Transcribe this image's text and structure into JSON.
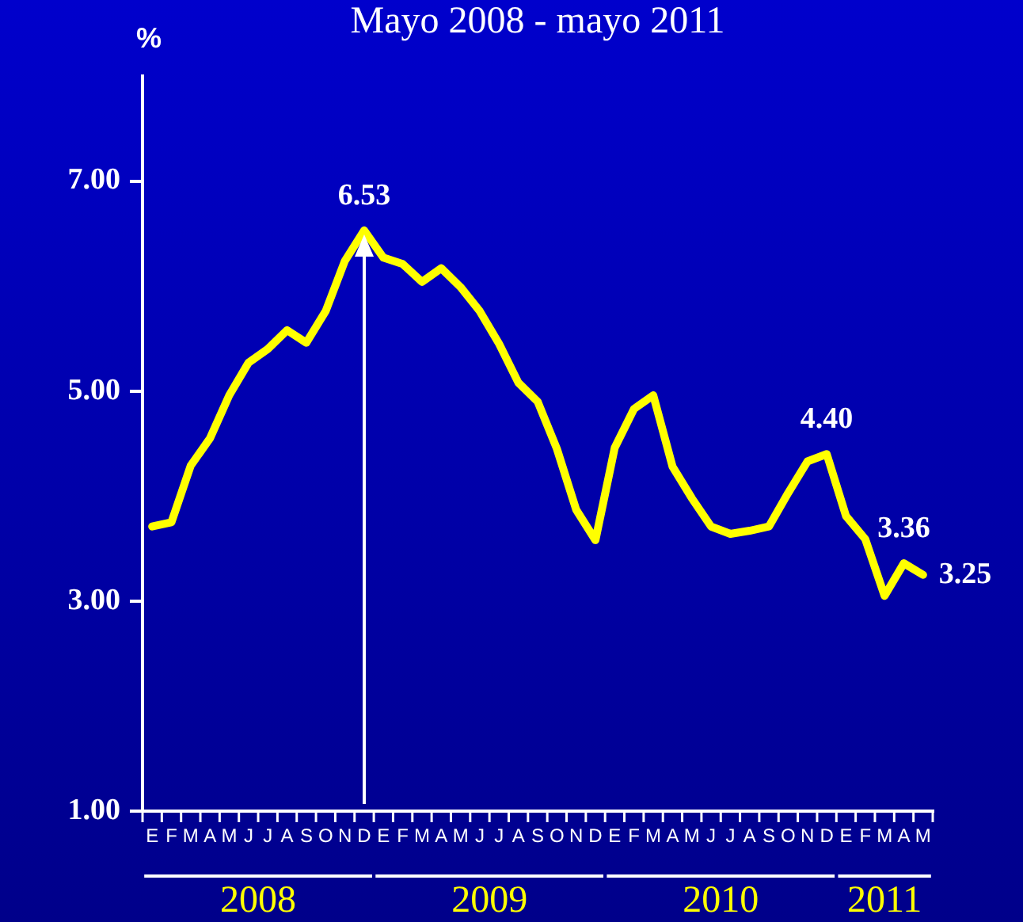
{
  "chart_data": {
    "type": "line",
    "title": "Mayo 2008 - mayo 2011",
    "ylabel": "%",
    "categories": [
      "E",
      "F",
      "M",
      "A",
      "M",
      "J",
      "J",
      "A",
      "S",
      "O",
      "N",
      "D",
      "E",
      "F",
      "M",
      "A",
      "M",
      "J",
      "J",
      "A",
      "S",
      "O",
      "N",
      "D",
      "E",
      "F",
      "M",
      "A",
      "M",
      "J",
      "J",
      "A",
      "S",
      "O",
      "N",
      "D",
      "E",
      "F",
      "M",
      "A",
      "M"
    ],
    "series": [
      {
        "color": "#ffff00",
        "values": [
          3.71,
          3.75,
          4.29,
          4.55,
          4.96,
          5.27,
          5.4,
          5.58,
          5.46,
          5.76,
          6.24,
          6.53,
          6.27,
          6.21,
          6.04,
          6.17,
          5.99,
          5.76,
          5.45,
          5.08,
          4.9,
          4.45,
          3.87,
          3.58,
          4.46,
          4.83,
          4.96,
          4.28,
          3.98,
          3.71,
          3.64,
          3.67,
          3.71,
          4.03,
          4.33,
          4.4,
          3.81,
          3.59,
          3.05,
          3.36,
          3.25
        ],
        "value_labels": [
          null,
          null,
          null,
          null,
          null,
          null,
          null,
          null,
          null,
          null,
          null,
          "6.53",
          null,
          null,
          null,
          null,
          null,
          null,
          null,
          null,
          null,
          null,
          null,
          null,
          null,
          null,
          null,
          null,
          null,
          null,
          null,
          null,
          null,
          null,
          null,
          "4.40",
          null,
          null,
          null,
          "3.36",
          "3.25"
        ]
      }
    ],
    "annotations": [
      "2008",
      "2009",
      "2010",
      "2011"
    ],
    "ylim": [
      1,
      8
    ],
    "yticks": [
      {
        "value": 1,
        "label": "1.00"
      },
      {
        "value": 3,
        "label": "3.00"
      },
      {
        "value": 5,
        "label": "5.00"
      },
      {
        "value": 7,
        "label": "7.00"
      }
    ],
    "grid": false,
    "legend": false,
    "marker": "none",
    "line_style": "solid"
  }
}
